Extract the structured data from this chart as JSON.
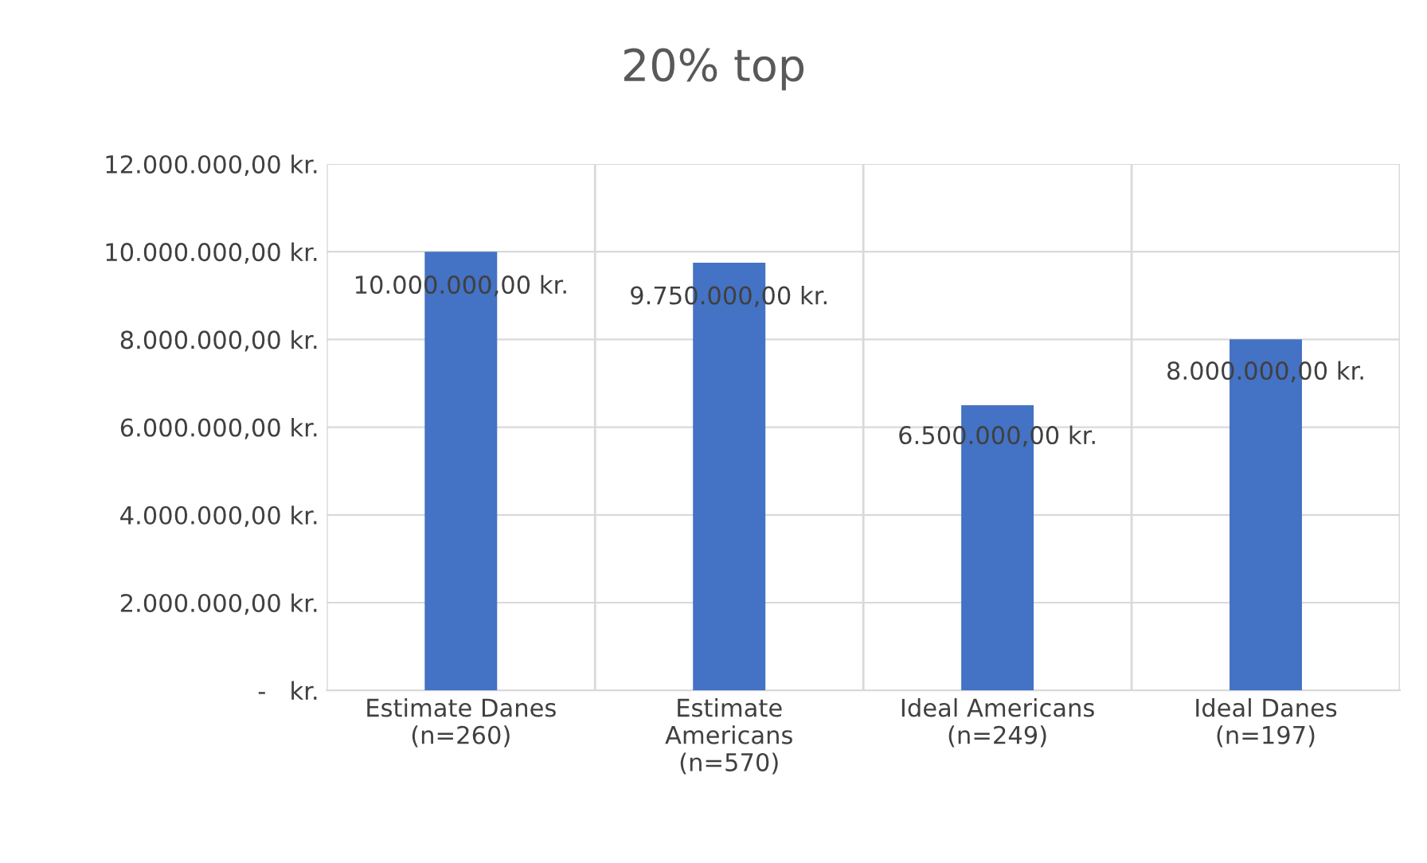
{
  "chart_data": {
    "type": "bar",
    "title": "20% top",
    "categories": [
      "Estimate Danes\n(n=260)",
      "Estimate\nAmericans\n(n=570)",
      "Ideal Americans\n(n=249)",
      "Ideal Danes\n(n=197)"
    ],
    "values": [
      10000000,
      9750000,
      6500000,
      8000000
    ],
    "value_labels": [
      "10.000.000,00 kr.",
      "9.750.000,00 kr.",
      "6.500.000,00 kr.",
      "8.000.000,00 kr."
    ],
    "color": "#4472c4",
    "ylim": [
      0,
      12000000
    ],
    "yticks": [
      {
        "value": 0,
        "label": "-   kr."
      },
      {
        "value": 2000000,
        "label": "2.000.000,00 kr."
      },
      {
        "value": 4000000,
        "label": "4.000.000,00 kr."
      },
      {
        "value": 6000000,
        "label": "6.000.000,00 kr."
      },
      {
        "value": 8000000,
        "label": "8.000.000,00 kr."
      },
      {
        "value": 10000000,
        "label": "10.000.000,00 kr."
      },
      {
        "value": 12000000,
        "label": "12.000.000,00 kr."
      }
    ],
    "grid": true,
    "legend": false
  }
}
